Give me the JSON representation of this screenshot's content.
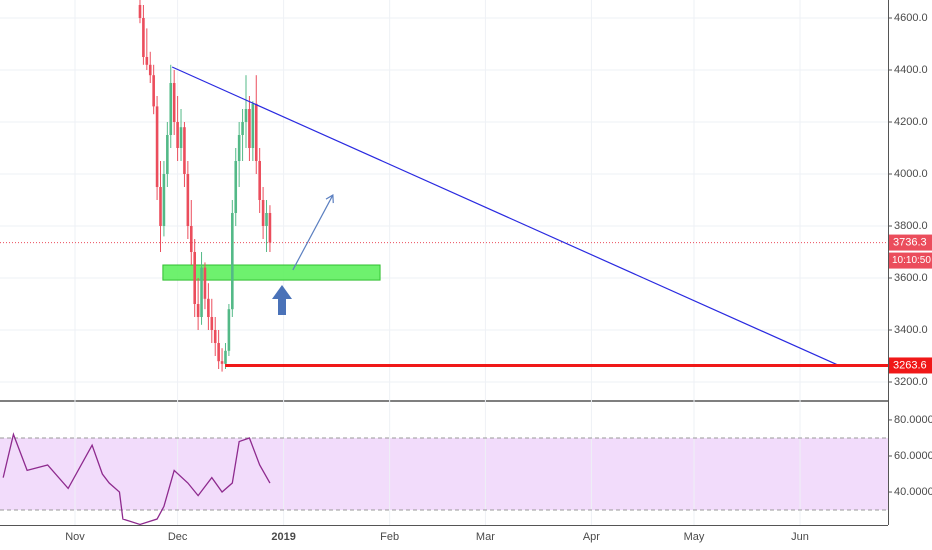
{
  "chart_data": [
    {
      "type": "candlestick",
      "x": [
        19,
        20,
        21,
        22,
        23,
        24,
        25,
        26,
        27,
        28,
        29,
        30,
        31,
        32,
        33,
        34,
        35,
        36,
        37,
        38,
        39,
        40,
        41,
        42,
        43,
        44,
        45,
        46,
        47,
        48,
        49,
        50,
        51,
        52,
        53,
        54,
        55,
        56,
        57
      ],
      "open": [
        4650,
        4600,
        4450,
        4420,
        4380,
        4260,
        3950,
        3800,
        4000,
        4150,
        4350,
        4200,
        4100,
        4180,
        4000,
        3800,
        3700,
        3500,
        3450,
        3640,
        3520,
        3450,
        3400,
        3350,
        3280,
        3270,
        3320,
        3480,
        3850,
        4050,
        4150,
        4200,
        4250,
        4100,
        4270,
        4050,
        3900,
        3800,
        3850
      ],
      "high": [
        4680,
        4650,
        4560,
        4470,
        4420,
        4300,
        4050,
        4050,
        4200,
        4420,
        4400,
        4300,
        4250,
        4200,
        4050,
        3900,
        3750,
        3600,
        3700,
        3660,
        3580,
        3520,
        3450,
        3400,
        3330,
        3350,
        3500,
        3900,
        4100,
        4200,
        4250,
        4380,
        4300,
        4280,
        4380,
        4100,
        3950,
        3900,
        3880
      ],
      "low": [
        4580,
        4420,
        4400,
        4350,
        4230,
        3900,
        3700,
        3760,
        3950,
        4100,
        4150,
        4050,
        4050,
        3950,
        3750,
        3650,
        3450,
        3400,
        3420,
        3480,
        3400,
        3350,
        3300,
        3250,
        3240,
        3250,
        3300,
        3450,
        3800,
        3950,
        4050,
        4100,
        4050,
        4050,
        4000,
        3850,
        3750,
        3700,
        3700
      ],
      "close": [
        4600,
        4450,
        4420,
        4380,
        4260,
        3950,
        3800,
        4000,
        4150,
        4350,
        4200,
        4100,
        4180,
        4000,
        3800,
        3700,
        3500,
        3450,
        3640,
        3520,
        3450,
        3400,
        3350,
        3280,
        3270,
        3320,
        3480,
        3850,
        4050,
        4150,
        4200,
        4250,
        4100,
        4270,
        4050,
        3900,
        3800,
        3850,
        3736.3
      ],
      "up_color": "#53b987",
      "down_color": "#eb4d5c",
      "xlim": [
        -21.93,
        237.72
      ],
      "xticks": [
        {
          "value": 0,
          "label": "Nov"
        },
        {
          "value": 30,
          "label": "Dec"
        },
        {
          "value": 61,
          "label": "2019"
        },
        {
          "value": 92,
          "label": "Feb"
        },
        {
          "value": 120,
          "label": "Mar"
        },
        {
          "value": 151,
          "label": "Apr"
        },
        {
          "value": 181,
          "label": "May"
        },
        {
          "value": 212,
          "label": "Jun"
        }
      ],
      "ylim": [
        3130.8,
        4669.2
      ],
      "yticks": [
        {
          "value": 3200,
          "label": "3200.0"
        },
        {
          "value": 3400,
          "label": "3400.0"
        },
        {
          "value": 3600,
          "label": "3600.0"
        },
        {
          "value": 3800,
          "label": "3800.0"
        },
        {
          "value": 4000,
          "label": "4000.0"
        },
        {
          "value": 4200,
          "label": "4200.0"
        },
        {
          "value": 4400,
          "label": "4400.0"
        },
        {
          "value": 4600,
          "label": "4600.0"
        }
      ],
      "last_price": {
        "value": 3736.3,
        "label": "3736.3"
      },
      "countdown": "10:10:50",
      "support": {
        "value": 3263.6,
        "label": "3263.6",
        "x": 43.9,
        "color": "#f01818"
      },
      "trendline": {
        "x": [
          28.4,
          223.1
        ],
        "y": [
          4411.5,
          3265
        ],
        "color": "#2a2ae0"
      },
      "zone": {
        "x": [
          25.7,
          89.2
        ],
        "y": [
          3592,
          3650
        ],
        "color": "#5ef05e"
      },
      "arrow": {
        "x": [
          63.7,
          75.4
        ],
        "y": [
          3631,
          3919
        ],
        "color": "#5b7fc0"
      },
      "grid": true
    },
    {
      "type": "line",
      "x": [
        -21,
        -18,
        -14,
        -8,
        -2,
        5,
        8,
        10,
        13,
        14,
        19,
        24,
        26,
        29,
        33,
        36,
        40,
        43,
        46,
        48,
        51,
        54,
        57
      ],
      "values": [
        48,
        72,
        52,
        55,
        42,
        66,
        50,
        45,
        40,
        25,
        22,
        25,
        32,
        52,
        45,
        38,
        48,
        40,
        45,
        68,
        70,
        55,
        45
      ],
      "color": "#8e2a8e",
      "bands": [
        30,
        70
      ],
      "band_color": "#f2dcfb",
      "xlim": [
        -21.93,
        237.72
      ],
      "ylim": [
        21.7,
        89.4
      ],
      "yticks": [
        {
          "value": 40,
          "label": "40.0000"
        },
        {
          "value": 60,
          "label": "60.0000"
        },
        {
          "value": 80,
          "label": "80.0000"
        }
      ]
    }
  ]
}
